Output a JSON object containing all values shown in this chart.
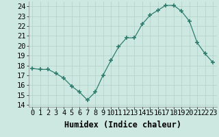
{
  "x": [
    0,
    1,
    2,
    3,
    4,
    5,
    6,
    7,
    8,
    9,
    10,
    11,
    12,
    13,
    14,
    15,
    16,
    17,
    18,
    19,
    20,
    21,
    22,
    23
  ],
  "y": [
    17.7,
    17.6,
    17.6,
    17.2,
    16.7,
    15.9,
    15.3,
    14.5,
    15.3,
    17.0,
    18.5,
    19.9,
    20.8,
    20.8,
    22.2,
    23.1,
    23.6,
    24.1,
    24.1,
    23.5,
    22.5,
    20.3,
    19.2,
    18.3
  ],
  "line_color": "#2d7d6e",
  "marker": "+",
  "marker_size": 4,
  "xlabel": "Humidex (Indice chaleur)",
  "xlim": [
    -0.5,
    23.5
  ],
  "ylim": [
    13.8,
    24.5
  ],
  "yticks": [
    14,
    15,
    16,
    17,
    18,
    19,
    20,
    21,
    22,
    23,
    24
  ],
  "xtick_labels": [
    "0",
    "1",
    "2",
    "3",
    "4",
    "5",
    "6",
    "7",
    "8",
    "9",
    "10",
    "11",
    "12",
    "13",
    "14",
    "15",
    "16",
    "17",
    "18",
    "19",
    "20",
    "21",
    "22",
    "23"
  ],
  "bg_color": "#cce8e0",
  "grid_color": "#b0d0c8",
  "tick_fontsize": 7.5,
  "xlabel_fontsize": 8.5
}
